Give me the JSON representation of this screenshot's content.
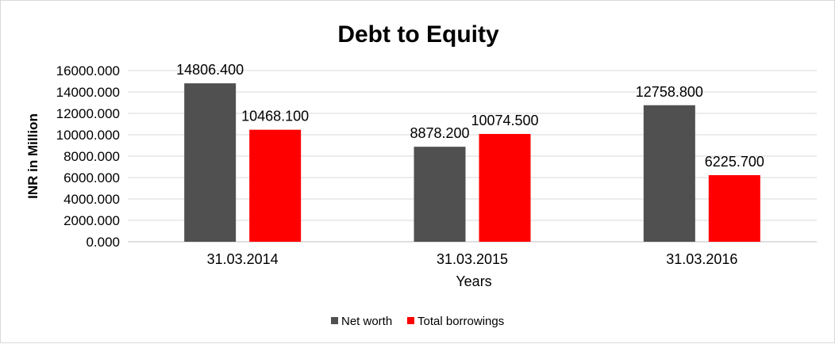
{
  "chart_data": {
    "type": "bar",
    "title": "Debt to Equity",
    "xlabel": "Years",
    "ylabel": "INR in Million",
    "categories": [
      "31.03.2014",
      "31.03.2015",
      "31.03.2016"
    ],
    "series": [
      {
        "name": "Net worth",
        "color": "#505050",
        "values": [
          14806.4,
          8878.2,
          12758.8
        ],
        "labels": [
          "14806.400",
          "8878.200",
          "12758.800"
        ]
      },
      {
        "name": "Total borrowings",
        "color": "#ff0000",
        "values": [
          10468.1,
          10074.5,
          6225.7
        ],
        "labels": [
          "10468.100",
          "10074.500",
          "6225.700"
        ]
      }
    ],
    "ylim": [
      0,
      16000
    ],
    "yticks": [
      0,
      2000,
      4000,
      6000,
      8000,
      10000,
      12000,
      14000,
      16000
    ],
    "ytick_labels": [
      "0.000",
      "2000.000",
      "4000.000",
      "6000.000",
      "8000.000",
      "10000.000",
      "12000.000",
      "14000.000",
      "16000.000"
    ],
    "grid": true,
    "legend": "bottom"
  }
}
